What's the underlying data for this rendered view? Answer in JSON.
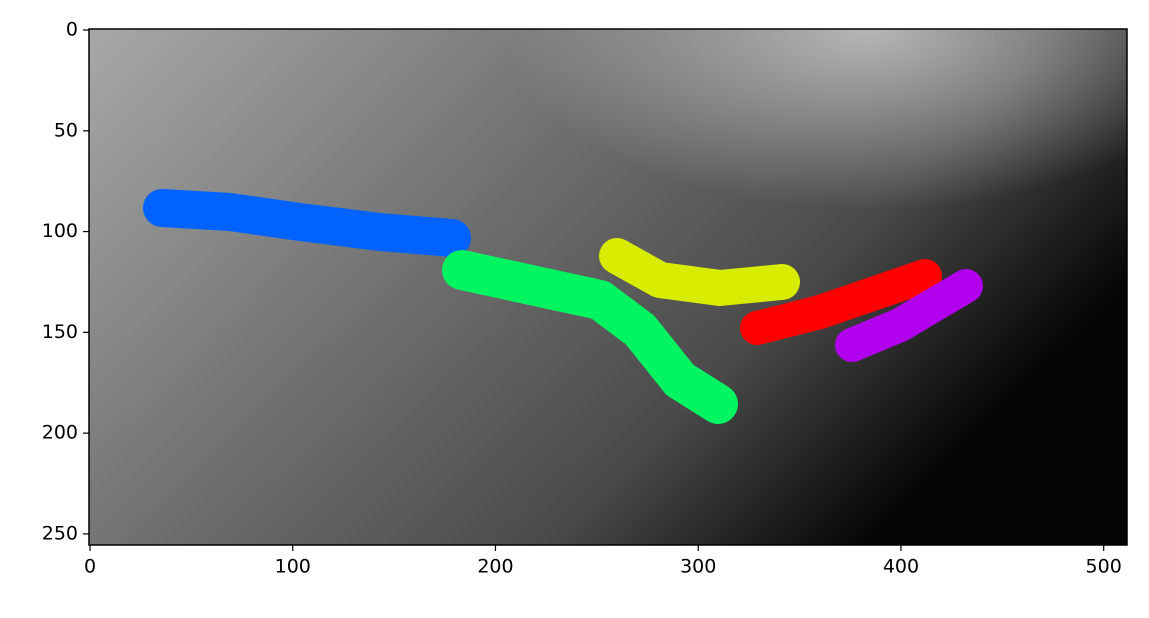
{
  "chart_data": {
    "type": "image",
    "xlim": [
      -0.5,
      511.5
    ],
    "ylim": [
      255.5,
      -0.5
    ],
    "xticks": [
      0,
      100,
      200,
      300,
      400,
      500
    ],
    "yticks": [
      0,
      50,
      100,
      150,
      200,
      250
    ]
  }
}
